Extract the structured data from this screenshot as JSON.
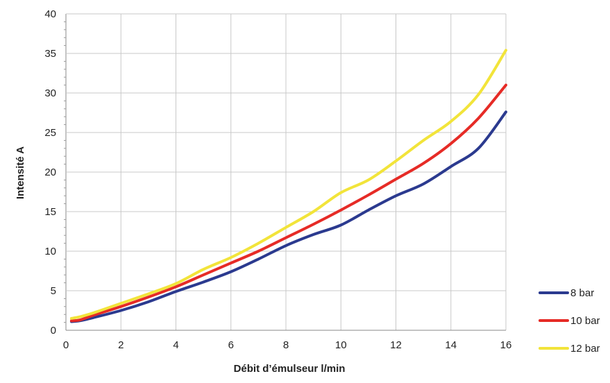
{
  "chart_data": {
    "type": "line",
    "xlabel": "Débit d’émulseur l/min",
    "ylabel": "Intensité A",
    "xlim": [
      0,
      16
    ],
    "ylim": [
      0,
      40
    ],
    "x_ticks": [
      "0",
      "2",
      "4",
      "6",
      "8",
      "10",
      "12",
      "14",
      "16"
    ],
    "y_ticks": [
      "0",
      "5",
      "10",
      "15",
      "20",
      "25",
      "30",
      "35",
      "40"
    ],
    "grid": true,
    "legend_position": "bottom-right",
    "series": [
      {
        "name": "8 bar",
        "color": "#2b3a8f",
        "points": [
          [
            0.2,
            1.1
          ],
          [
            0.5,
            1.2
          ],
          [
            1,
            1.6
          ],
          [
            2,
            2.5
          ],
          [
            3,
            3.6
          ],
          [
            4,
            4.9
          ],
          [
            5,
            6.1
          ],
          [
            6,
            7.4
          ],
          [
            7,
            9.0
          ],
          [
            8,
            10.7
          ],
          [
            9,
            12.1
          ],
          [
            10,
            13.3
          ],
          [
            11,
            15.2
          ],
          [
            12,
            17.0
          ],
          [
            13,
            18.5
          ],
          [
            14,
            20.7
          ],
          [
            15,
            23.0
          ],
          [
            16,
            27.6
          ]
        ]
      },
      {
        "name": "10 bar",
        "color": "#e62b26",
        "points": [
          [
            0.2,
            1.2
          ],
          [
            0.5,
            1.3
          ],
          [
            1,
            1.9
          ],
          [
            2,
            3.0
          ],
          [
            3,
            4.2
          ],
          [
            4,
            5.5
          ],
          [
            5,
            7.0
          ],
          [
            6,
            8.5
          ],
          [
            7,
            10.0
          ],
          [
            8,
            11.7
          ],
          [
            9,
            13.4
          ],
          [
            10,
            15.2
          ],
          [
            11,
            17.1
          ],
          [
            12,
            19.1
          ],
          [
            13,
            21.1
          ],
          [
            14,
            23.6
          ],
          [
            15,
            26.8
          ],
          [
            16,
            31.0
          ]
        ]
      },
      {
        "name": "12 bar",
        "color": "#f2e43a",
        "points": [
          [
            0.2,
            1.5
          ],
          [
            0.5,
            1.7
          ],
          [
            1,
            2.2
          ],
          [
            2,
            3.4
          ],
          [
            3,
            4.6
          ],
          [
            4,
            5.9
          ],
          [
            5,
            7.7
          ],
          [
            6,
            9.2
          ],
          [
            7,
            11.0
          ],
          [
            8,
            13.0
          ],
          [
            9,
            15.0
          ],
          [
            10,
            17.4
          ],
          [
            11,
            19.0
          ],
          [
            12,
            21.4
          ],
          [
            13,
            24.0
          ],
          [
            14,
            26.4
          ],
          [
            15,
            29.8
          ],
          [
            16,
            35.4
          ]
        ]
      }
    ]
  }
}
